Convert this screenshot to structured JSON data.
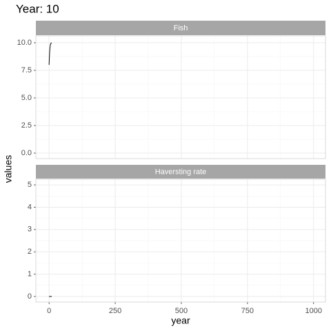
{
  "chart_data": {
    "type": "line",
    "title": "Year: 10",
    "x_label": "year",
    "y_label": "values",
    "x": [
      0,
      1,
      2,
      3,
      4,
      5,
      6,
      7,
      8,
      9,
      10
    ],
    "xlim": [
      -50,
      1045
    ],
    "xticks": [
      0,
      250,
      500,
      750,
      1000
    ],
    "grid": true,
    "color": "#000000",
    "panels": [
      {
        "title": "Fish",
        "values": [
          8,
          8.6,
          9.1,
          9.45,
          9.7,
          9.82,
          9.9,
          9.95,
          9.97,
          9.99,
          10
        ],
        "ylim": [
          -0.5,
          10.625
        ],
        "yticks": [
          {
            "value": 0,
            "label": "0.0"
          },
          2.5,
          {
            "value": 5,
            "label": "5.0"
          },
          7.5,
          {
            "value": 10,
            "label": "10.0"
          }
        ]
      },
      {
        "title": "Haversting rate",
        "values": [
          0,
          0,
          0,
          0,
          0,
          0,
          0,
          0,
          0,
          0,
          0
        ],
        "ylim": [
          -0.25,
          5.25
        ],
        "yticks": [
          0,
          1,
          2,
          3,
          4,
          5
        ]
      }
    ]
  }
}
